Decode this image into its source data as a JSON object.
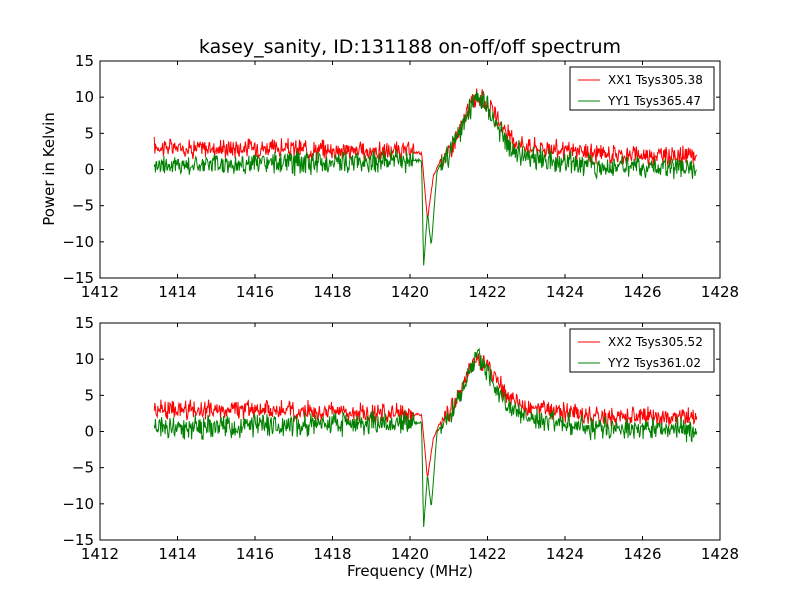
{
  "title": "kasey_sanity, ID:131188 on-off/off spectrum",
  "ylabel": "Power in Kelvin",
  "xlabel": "Frequency (MHz)",
  "colors": {
    "red": "#ff0000",
    "green": "#008000"
  },
  "chart_data": [
    {
      "type": "line",
      "panel": "top",
      "xlim": [
        1412,
        1428
      ],
      "ylim": [
        -15,
        15
      ],
      "xticks": [
        1412,
        1414,
        1416,
        1418,
        1420,
        1422,
        1424,
        1426,
        1428
      ],
      "yticks": [
        -15,
        -10,
        -5,
        0,
        5,
        10,
        15
      ],
      "ytick_labels": [
        "−15",
        "−10",
        "−5",
        "0",
        "5",
        "10",
        "15"
      ],
      "legend_position": "top-right",
      "series": [
        {
          "name": "XX1 Tsys305.38",
          "color": "#ff0000",
          "points": [
            [
              1413.4,
              3.2
            ],
            [
              1414.0,
              3.0
            ],
            [
              1415.0,
              2.9
            ],
            [
              1416.0,
              3.1
            ],
            [
              1417.0,
              2.8
            ],
            [
              1418.0,
              2.7
            ],
            [
              1419.0,
              2.5
            ],
            [
              1420.0,
              2.4
            ],
            [
              1420.3,
              2.3
            ],
            [
              1420.45,
              -7.0
            ],
            [
              1420.6,
              -1.0
            ],
            [
              1420.8,
              1.5
            ],
            [
              1421.0,
              2.5
            ],
            [
              1421.3,
              5.5
            ],
            [
              1421.6,
              9.5
            ],
            [
              1421.75,
              10.0
            ],
            [
              1422.0,
              9.0
            ],
            [
              1422.3,
              6.5
            ],
            [
              1422.6,
              4.2
            ],
            [
              1423.0,
              3.3
            ],
            [
              1424.0,
              2.6
            ],
            [
              1425.0,
              2.1
            ],
            [
              1426.0,
              2.0
            ],
            [
              1427.0,
              1.9
            ],
            [
              1427.4,
              1.8
            ]
          ]
        },
        {
          "name": "YY1 Tsys365.47",
          "color": "#008000",
          "points": [
            [
              1413.4,
              0.8
            ],
            [
              1414.0,
              0.6
            ],
            [
              1415.0,
              0.7
            ],
            [
              1416.0,
              0.8
            ],
            [
              1417.0,
              0.9
            ],
            [
              1418.0,
              1.0
            ],
            [
              1419.0,
              1.1
            ],
            [
              1420.0,
              1.3
            ],
            [
              1420.3,
              1.2
            ],
            [
              1420.35,
              -13.5
            ],
            [
              1420.45,
              -6.0
            ],
            [
              1420.55,
              -10.5
            ],
            [
              1420.7,
              0.0
            ],
            [
              1421.0,
              2.0
            ],
            [
              1421.3,
              5.0
            ],
            [
              1421.6,
              9.0
            ],
            [
              1421.75,
              10.5
            ],
            [
              1422.0,
              8.5
            ],
            [
              1422.3,
              5.5
            ],
            [
              1422.6,
              3.0
            ],
            [
              1423.0,
              1.8
            ],
            [
              1424.0,
              1.0
            ],
            [
              1425.0,
              0.5
            ],
            [
              1426.0,
              0.3
            ],
            [
              1427.0,
              0.3
            ],
            [
              1427.4,
              0.2
            ]
          ]
        }
      ]
    },
    {
      "type": "line",
      "panel": "bottom",
      "xlim": [
        1412,
        1428
      ],
      "ylim": [
        -15,
        15
      ],
      "xticks": [
        1412,
        1414,
        1416,
        1418,
        1420,
        1422,
        1424,
        1426,
        1428
      ],
      "yticks": [
        -15,
        -10,
        -5,
        0,
        5,
        10,
        15
      ],
      "ytick_labels": [
        "−15",
        "−10",
        "−5",
        "0",
        "5",
        "10",
        "15"
      ],
      "legend_position": "top-right",
      "series": [
        {
          "name": "XX2 Tsys305.52",
          "color": "#ff0000",
          "points": [
            [
              1413.4,
              3.2
            ],
            [
              1414.0,
              3.0
            ],
            [
              1415.0,
              2.9
            ],
            [
              1416.0,
              3.1
            ],
            [
              1417.0,
              2.8
            ],
            [
              1418.0,
              2.7
            ],
            [
              1419.0,
              2.5
            ],
            [
              1420.0,
              2.4
            ],
            [
              1420.3,
              2.3
            ],
            [
              1420.45,
              -6.5
            ],
            [
              1420.6,
              -1.0
            ],
            [
              1420.8,
              1.5
            ],
            [
              1421.0,
              2.5
            ],
            [
              1421.3,
              5.5
            ],
            [
              1421.6,
              9.5
            ],
            [
              1421.75,
              10.0
            ],
            [
              1422.0,
              9.0
            ],
            [
              1422.3,
              6.5
            ],
            [
              1422.6,
              4.2
            ],
            [
              1423.0,
              3.3
            ],
            [
              1424.0,
              2.6
            ],
            [
              1425.0,
              2.1
            ],
            [
              1426.0,
              2.0
            ],
            [
              1427.0,
              1.9
            ],
            [
              1427.4,
              1.8
            ]
          ]
        },
        {
          "name": "YY2 Tsys361.02",
          "color": "#008000",
          "points": [
            [
              1413.4,
              0.8
            ],
            [
              1414.0,
              0.6
            ],
            [
              1415.0,
              0.7
            ],
            [
              1416.0,
              0.8
            ],
            [
              1417.0,
              0.9
            ],
            [
              1418.0,
              1.0
            ],
            [
              1419.0,
              1.1
            ],
            [
              1420.0,
              1.3
            ],
            [
              1420.3,
              1.2
            ],
            [
              1420.35,
              -13.5
            ],
            [
              1420.45,
              -6.0
            ],
            [
              1420.55,
              -10.5
            ],
            [
              1420.7,
              0.0
            ],
            [
              1421.0,
              2.0
            ],
            [
              1421.3,
              5.0
            ],
            [
              1421.6,
              9.0
            ],
            [
              1421.75,
              10.5
            ],
            [
              1422.0,
              8.5
            ],
            [
              1422.3,
              5.5
            ],
            [
              1422.6,
              3.0
            ],
            [
              1423.0,
              1.8
            ],
            [
              1424.0,
              1.0
            ],
            [
              1425.0,
              0.5
            ],
            [
              1426.0,
              0.3
            ],
            [
              1427.0,
              0.3
            ],
            [
              1427.4,
              0.2
            ]
          ]
        }
      ]
    }
  ]
}
